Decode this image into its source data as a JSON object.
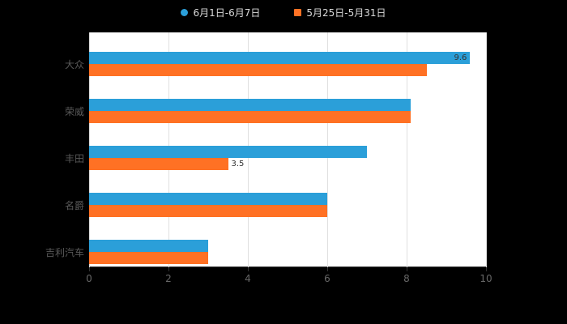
{
  "palette": {
    "background": "#000000",
    "plot_background": "#ffffff",
    "gridline": "#e0e0e0",
    "axis": "#333333",
    "tick_text": "#666666",
    "category_text": "#595959",
    "legend_text": "#d9d9d9",
    "annotation_text": "#333333"
  },
  "chart_data": {
    "type": "bar",
    "orientation": "horizontal",
    "title": "",
    "xlabel": "",
    "ylabel": "",
    "xlim": [
      0,
      10
    ],
    "x_ticks": [
      0,
      2,
      4,
      6,
      8,
      10
    ],
    "grid": true,
    "legend_position": "top-center",
    "categories": [
      "大众",
      "荣威",
      "丰田",
      "名爵",
      "吉利汽车"
    ],
    "series": [
      {
        "name": "6月1日-6月7日",
        "marker": "circle",
        "color": "#2b9fd9",
        "values": [
          9.6,
          8.1,
          7,
          6,
          3
        ]
      },
      {
        "name": "5月25日-5月31日",
        "marker": "square",
        "color": "#ff7124",
        "values": [
          8.5,
          8.1,
          3.5,
          6,
          3
        ]
      }
    ],
    "annotations": [
      {
        "text": "9.6",
        "series_index": 0,
        "category_index": 0,
        "placement": "inside-end"
      },
      {
        "text": "3.5",
        "series_index": 1,
        "category_index": 2,
        "placement": "outside-end"
      }
    ]
  }
}
